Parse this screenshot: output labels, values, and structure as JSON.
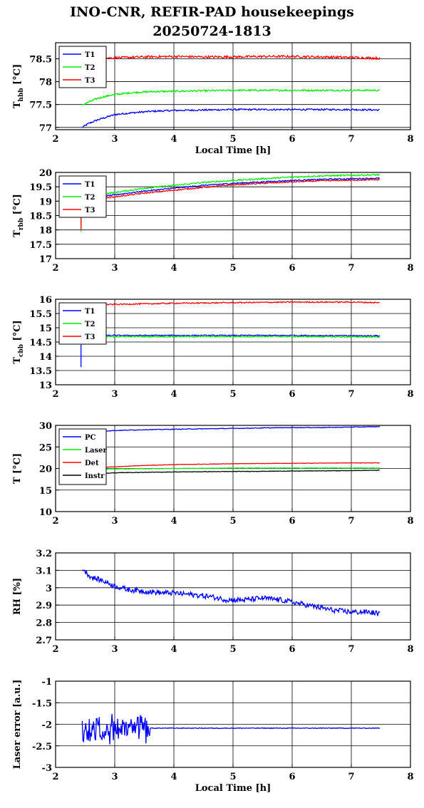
{
  "page": {
    "title_line1": "INO-CNR, REFIR-PAD housekeepings",
    "title_line2": "20250724-1813"
  },
  "chart_data": [
    {
      "type": "line",
      "ylabel": "T_hbb [°C]",
      "ylabel_main": "T",
      "ylabel_sub": "hbb",
      "ylabel_tail": " [°C]",
      "xlabel": "Local Time [h]",
      "xlim": [
        2,
        8
      ],
      "xticks": [
        2,
        3,
        4,
        5,
        6,
        7,
        8
      ],
      "ylim": [
        76.95,
        78.85
      ],
      "yticks": [
        77,
        77.5,
        78,
        78.5
      ],
      "grid": true,
      "legend_position": "top-left",
      "series": [
        {
          "name": "T1",
          "color": "#0000ff",
          "x": [
            2.45,
            2.55,
            2.7,
            2.85,
            3.0,
            3.3,
            3.6,
            4.0,
            4.5,
            5.0,
            5.5,
            6.0,
            6.5,
            7.0,
            7.48
          ],
          "y": [
            77.0,
            77.08,
            77.16,
            77.22,
            77.28,
            77.32,
            77.35,
            77.37,
            77.38,
            77.39,
            77.39,
            77.39,
            77.39,
            77.39,
            77.38
          ],
          "noise": 0.018
        },
        {
          "name": "T2",
          "color": "#00ee00",
          "x": [
            2.45,
            2.55,
            2.7,
            2.85,
            3.0,
            3.3,
            3.6,
            4.0,
            4.5,
            5.0,
            5.5,
            6.0,
            6.5,
            7.0,
            7.48
          ],
          "y": [
            77.49,
            77.55,
            77.63,
            77.68,
            77.72,
            77.76,
            77.78,
            77.79,
            77.8,
            77.81,
            77.81,
            77.81,
            77.81,
            77.81,
            77.81
          ],
          "noise": 0.018
        },
        {
          "name": "T3",
          "color": "#ff0000",
          "x": [
            2.45,
            3.0,
            3.5,
            4.0,
            4.5,
            5.0,
            5.5,
            6.0,
            6.5,
            7.0,
            7.48
          ],
          "y": [
            78.5,
            78.52,
            78.54,
            78.55,
            78.54,
            78.54,
            78.55,
            78.55,
            78.54,
            78.53,
            78.51
          ],
          "noise": 0.025
        }
      ]
    },
    {
      "type": "line",
      "ylabel": "T_rbb [°C]",
      "ylabel_main": "T",
      "ylabel_sub": "rbb",
      "ylabel_tail": " [°C]",
      "xlabel": "",
      "xlim": [
        2,
        8
      ],
      "xticks": [
        2,
        3,
        4,
        5,
        6,
        7,
        8
      ],
      "ylim": [
        17,
        20
      ],
      "yticks": [
        17,
        17.5,
        18,
        18.5,
        19,
        19.5,
        20
      ],
      "grid": true,
      "legend_position": "top-left",
      "series": [
        {
          "name": "T1",
          "color": "#0000ff",
          "x": [
            2.43,
            2.43,
            2.45,
            2.6,
            3.0,
            3.5,
            4.0,
            4.5,
            5.0,
            5.5,
            6.0,
            6.5,
            7.0,
            7.48
          ],
          "y": [
            18.1,
            18.9,
            19.0,
            19.1,
            19.22,
            19.35,
            19.45,
            19.55,
            19.62,
            19.67,
            19.72,
            19.76,
            19.78,
            19.8
          ],
          "noise": 0.02
        },
        {
          "name": "T2",
          "color": "#00ee00",
          "x": [
            2.43,
            2.43,
            2.45,
            2.6,
            3.0,
            3.5,
            4.0,
            4.5,
            5.0,
            5.5,
            6.0,
            6.5,
            7.0,
            7.48
          ],
          "y": [
            17.95,
            18.9,
            19.1,
            19.2,
            19.3,
            19.45,
            19.55,
            19.65,
            19.72,
            19.78,
            19.84,
            19.88,
            19.9,
            19.92
          ],
          "noise": 0.025
        },
        {
          "name": "T3",
          "color": "#ff0000",
          "x": [
            2.43,
            2.43,
            2.45,
            2.6,
            3.0,
            3.5,
            4.0,
            4.5,
            5.0,
            5.5,
            6.0,
            6.5,
            7.0,
            7.48
          ],
          "y": [
            18.0,
            18.8,
            18.95,
            19.05,
            19.15,
            19.28,
            19.38,
            19.48,
            19.57,
            19.62,
            19.67,
            19.71,
            19.73,
            19.75
          ],
          "noise": 0.02
        }
      ]
    },
    {
      "type": "line",
      "ylabel": "T_cbb [°C]",
      "ylabel_main": "T",
      "ylabel_sub": "cbb",
      "ylabel_tail": " [°C]",
      "xlabel": "",
      "xlim": [
        2,
        8
      ],
      "xticks": [
        2,
        3,
        4,
        5,
        6,
        7,
        8
      ],
      "ylim": [
        13,
        16
      ],
      "yticks": [
        13,
        13.5,
        14,
        14.5,
        15,
        15.5,
        16
      ],
      "grid": true,
      "legend_position": "top-left",
      "series": [
        {
          "name": "T1",
          "color": "#0000ff",
          "x": [
            2.43,
            2.43,
            2.45,
            3.0,
            4.0,
            5.0,
            6.0,
            7.0,
            7.48
          ],
          "y": [
            13.62,
            14.55,
            14.72,
            14.73,
            14.73,
            14.73,
            14.73,
            14.72,
            14.72
          ],
          "noise": 0.02
        },
        {
          "name": "T2",
          "color": "#00ee00",
          "x": [
            2.43,
            2.43,
            2.45,
            3.0,
            4.0,
            5.0,
            6.0,
            7.0,
            7.48
          ],
          "y": [
            14.4,
            14.6,
            14.68,
            14.69,
            14.69,
            14.69,
            14.69,
            14.68,
            14.68
          ],
          "noise": 0.02
        },
        {
          "name": "T3",
          "color": "#ff0000",
          "x": [
            2.45,
            3.0,
            3.5,
            4.0,
            5.0,
            6.0,
            7.0,
            7.48
          ],
          "y": [
            15.8,
            15.82,
            15.84,
            15.86,
            15.88,
            15.9,
            15.9,
            15.88
          ],
          "noise": 0.02
        }
      ]
    },
    {
      "type": "line",
      "ylabel": "T [°C]",
      "ylabel_main": "T [°C]",
      "ylabel_sub": "",
      "ylabel_tail": "",
      "xlabel": "",
      "xlim": [
        2,
        8
      ],
      "xticks": [
        2,
        3,
        4,
        5,
        6,
        7,
        8
      ],
      "ylim": [
        10,
        30
      ],
      "yticks": [
        10,
        15,
        20,
        25,
        30
      ],
      "grid": true,
      "legend_position": "top-left",
      "series": [
        {
          "name": "PC",
          "color": "#0000ff",
          "x": [
            2.45,
            3.0,
            3.5,
            4.0,
            4.5,
            5.0,
            5.5,
            6.0,
            6.5,
            7.0,
            7.48
          ],
          "y": [
            28.5,
            28.8,
            29.0,
            29.1,
            29.2,
            29.3,
            29.4,
            29.5,
            29.5,
            29.6,
            29.7
          ],
          "noise": 0.07
        },
        {
          "name": "Laser",
          "color": "#00ee00",
          "x": [
            2.45,
            3.0,
            4.0,
            5.0,
            6.0,
            7.0,
            7.48
          ],
          "y": [
            19.7,
            19.9,
            20.0,
            20.1,
            20.1,
            20.1,
            20.1
          ],
          "noise": 0.05
        },
        {
          "name": "Det",
          "color": "#ff0000",
          "x": [
            2.45,
            3.0,
            3.5,
            4.0,
            5.0,
            6.0,
            7.0,
            7.48
          ],
          "y": [
            20.0,
            20.4,
            20.7,
            20.9,
            21.1,
            21.2,
            21.3,
            21.3
          ],
          "noise": 0.04
        },
        {
          "name": "Instr",
          "color": "#000000",
          "x": [
            2.45,
            3.0,
            4.0,
            5.0,
            6.0,
            7.0,
            7.48
          ],
          "y": [
            18.7,
            19.0,
            19.2,
            19.3,
            19.4,
            19.5,
            19.6
          ],
          "noise": 0.05
        }
      ]
    },
    {
      "type": "line",
      "ylabel": "RH [%]",
      "ylabel_main": "RH [%]",
      "ylabel_sub": "",
      "ylabel_tail": "",
      "xlabel": "",
      "xlim": [
        2,
        8
      ],
      "xticks": [
        2,
        3,
        4,
        5,
        6,
        7,
        8
      ],
      "ylim": [
        2.7,
        3.2
      ],
      "yticks": [
        2.7,
        2.8,
        2.9,
        3,
        3.1,
        3.2
      ],
      "grid": true,
      "legend_position": "none",
      "series": [
        {
          "name": "",
          "color": "#0000ff",
          "x": [
            2.45,
            2.6,
            2.8,
            3.0,
            3.2,
            3.5,
            3.8,
            4.0,
            4.3,
            4.6,
            4.9,
            5.2,
            5.5,
            5.8,
            6.1,
            6.4,
            6.7,
            7.0,
            7.3,
            7.48
          ],
          "y": [
            3.11,
            3.06,
            3.04,
            3.01,
            2.99,
            2.98,
            2.97,
            2.97,
            2.96,
            2.95,
            2.93,
            2.93,
            2.94,
            2.93,
            2.91,
            2.89,
            2.87,
            2.86,
            2.86,
            2.85
          ],
          "noise": 0.015
        }
      ]
    },
    {
      "type": "line",
      "ylabel": "Laser error [a.u.]",
      "ylabel_main": "Laser error [a.u.]",
      "ylabel_sub": "",
      "ylabel_tail": "",
      "xlabel": "Local Time [h]",
      "xlim": [
        2,
        8
      ],
      "xticks": [
        2,
        3,
        4,
        5,
        6,
        7,
        8
      ],
      "ylim": [
        -3,
        -1
      ],
      "yticks": [
        -3,
        -2.5,
        -2,
        -1.5,
        -1
      ],
      "grid": true,
      "legend_position": "none",
      "series": [
        {
          "name": "",
          "color": "#0000ff",
          "x": [
            2.45,
            2.7,
            3.0,
            3.3,
            3.55,
            3.6,
            4.0,
            4.5,
            5.0,
            5.5,
            6.0,
            6.5,
            7.0,
            7.48
          ],
          "y": [
            -2.15,
            -2.1,
            -2.1,
            -2.1,
            -2.1,
            -2.09,
            -2.09,
            -2.09,
            -2.09,
            -2.09,
            -2.09,
            -2.09,
            -2.09,
            -2.09
          ],
          "noise": 0.008,
          "burst": [
            2.45,
            3.6,
            0.3
          ]
        }
      ]
    }
  ]
}
